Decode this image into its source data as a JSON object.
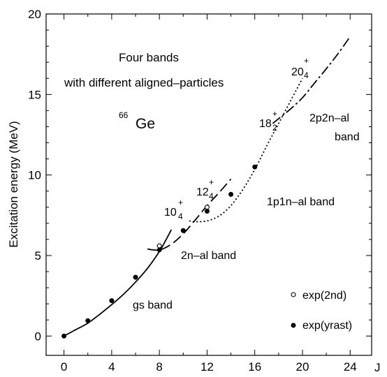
{
  "chart_data": {
    "type": "line",
    "xlabel": "J",
    "ylabel": "Excitation energy  (MeV)",
    "xlim": [
      -1.5,
      25.8
    ],
    "ylim": [
      -1.2,
      20
    ],
    "x_ticks": [
      0,
      4,
      8,
      12,
      16,
      20,
      24
    ],
    "x_minor_ticks": [
      2,
      6,
      10,
      14,
      18,
      22
    ],
    "y_ticks": [
      0,
      5,
      10,
      15,
      20
    ],
    "grid": false,
    "legend_position": "bottom-right",
    "annotations": {
      "title_line1": "Four bands",
      "title_line2": "with different aligned–particles",
      "nucleus_mass": "66",
      "nucleus_symbol": "Ge",
      "band_2p2n_line1": "2p2n–al",
      "band_2p2n_line2": "band",
      "band_1p1n": "1p1n–al band",
      "band_2n": "2n–al band",
      "band_gs": "gs band",
      "state_20": {
        "base": "20",
        "sub": "4",
        "sup": "+"
      },
      "state_18": {
        "base": "18",
        "sub": "2",
        "sup": "+"
      },
      "state_12": {
        "base": "12",
        "sub": "4",
        "sup": "+"
      },
      "state_10": {
        "base": "10",
        "sub": "4",
        "sup": "+"
      }
    },
    "series": [
      {
        "name": "gs band",
        "style": "solid",
        "x": [
          0,
          1,
          2,
          3,
          4,
          5,
          6,
          7,
          8,
          8.5,
          9
        ],
        "y": [
          0,
          0.4,
          0.8,
          1.35,
          1.95,
          2.6,
          3.35,
          4.2,
          5.25,
          5.9,
          6.6
        ]
      },
      {
        "name": "2n-al band",
        "style": "long-dash",
        "x": [
          7,
          8,
          9,
          10,
          11,
          12,
          13,
          14
        ],
        "y": [
          5.4,
          5.35,
          5.7,
          6.35,
          7.2,
          8.1,
          8.9,
          9.75
        ]
      },
      {
        "name": "1p1n-al band",
        "style": "dotted",
        "x": [
          10.5,
          11,
          12,
          13,
          14,
          15,
          16,
          17,
          18,
          19,
          20
        ],
        "y": [
          7.15,
          7.1,
          7.15,
          7.45,
          8.1,
          9.1,
          10.35,
          11.8,
          13.2,
          14.6,
          16.0
        ]
      },
      {
        "name": "2p2n-al band",
        "style": "dash-dot",
        "x": [
          17.5,
          18,
          19,
          20,
          21,
          22,
          23,
          24
        ],
        "y": [
          13.2,
          13.5,
          14.1,
          14.8,
          15.7,
          16.6,
          17.55,
          18.6
        ]
      }
    ],
    "points": [
      {
        "name": "exp(2nd)",
        "marker": "open-circle",
        "x": [
          8,
          12
        ],
        "y": [
          5.6,
          8.0
        ]
      },
      {
        "name": "exp(yrast)",
        "marker": "filled-circle",
        "x": [
          0,
          2,
          4,
          6,
          8,
          10,
          12,
          14,
          16
        ],
        "y": [
          0,
          0.95,
          2.2,
          3.65,
          5.35,
          6.55,
          7.75,
          8.8,
          10.5
        ]
      }
    ],
    "legend": [
      {
        "label": "exp(2nd)",
        "marker": "open-circle"
      },
      {
        "label": "exp(yrast)",
        "marker": "filled-circle"
      }
    ]
  }
}
